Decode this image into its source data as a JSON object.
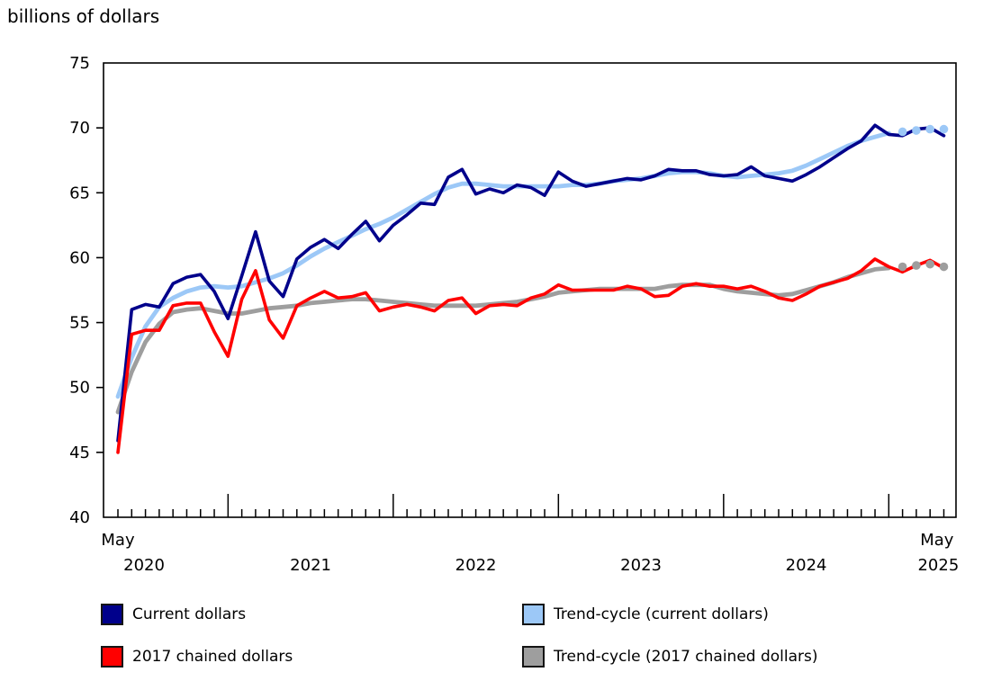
{
  "title": "billions of dollars",
  "chart_data": {
    "type": "line",
    "title": "billions of dollars",
    "xlabel": "",
    "ylabel": "billions of dollars",
    "frequency": "monthly",
    "x_start": "2020-05",
    "x_end": "2025-05",
    "ylim": [
      40,
      75
    ],
    "y_ticks": [
      75,
      70,
      65,
      60,
      55,
      50,
      45,
      40
    ],
    "grid": false,
    "legend_position": "bottom",
    "note": "last 4 points of trend-cycle series drawn as dots",
    "months": [
      "2020-05",
      "2020-06",
      "2020-07",
      "2020-08",
      "2020-09",
      "2020-10",
      "2020-11",
      "2020-12",
      "2021-01",
      "2021-02",
      "2021-03",
      "2021-04",
      "2021-05",
      "2021-06",
      "2021-07",
      "2021-08",
      "2021-09",
      "2021-10",
      "2021-11",
      "2021-12",
      "2022-01",
      "2022-02",
      "2022-03",
      "2022-04",
      "2022-05",
      "2022-06",
      "2022-07",
      "2022-08",
      "2022-09",
      "2022-10",
      "2022-11",
      "2022-12",
      "2023-01",
      "2023-02",
      "2023-03",
      "2023-04",
      "2023-05",
      "2023-06",
      "2023-07",
      "2023-08",
      "2023-09",
      "2023-10",
      "2023-11",
      "2023-12",
      "2024-01",
      "2024-02",
      "2024-03",
      "2024-04",
      "2024-05",
      "2024-06",
      "2024-07",
      "2024-08",
      "2024-09",
      "2024-10",
      "2024-11",
      "2024-12",
      "2025-01",
      "2025-02",
      "2025-03",
      "2025-04",
      "2025-05"
    ],
    "x_axis_labels": [
      {
        "text": "May",
        "month_index": 0,
        "row": 1
      },
      {
        "text": "2020",
        "month_index": 1.9,
        "row": 2
      },
      {
        "text": "2021",
        "month_index": 14,
        "row": 2
      },
      {
        "text": "2022",
        "month_index": 26,
        "row": 2
      },
      {
        "text": "2023",
        "month_index": 38,
        "row": 2
      },
      {
        "text": "2024",
        "month_index": 50,
        "row": 2
      },
      {
        "text": "May",
        "month_index": 59.5,
        "row": 1
      },
      {
        "text": "2025",
        "month_index": 59.6,
        "row": 2
      }
    ],
    "series": [
      {
        "name": "Current dollars",
        "color": "#00008B",
        "trend": false,
        "values": [
          45.9,
          56.0,
          56.4,
          56.2,
          58.0,
          58.5,
          58.7,
          57.4,
          55.3,
          58.6,
          62.0,
          58.2,
          57.0,
          59.9,
          60.8,
          61.4,
          60.7,
          61.8,
          62.8,
          61.3,
          62.5,
          63.3,
          64.2,
          64.1,
          66.2,
          66.8,
          64.9,
          65.3,
          65.0,
          65.6,
          65.4,
          64.8,
          66.6,
          65.9,
          65.5,
          65.7,
          65.9,
          66.1,
          66.0,
          66.3,
          66.8,
          66.7,
          66.7,
          66.4,
          66.3,
          66.4,
          67.0,
          66.3,
          66.1,
          65.9,
          66.4,
          67.0,
          67.7,
          68.4,
          69.0,
          70.2,
          69.5,
          69.4,
          69.9,
          70.0,
          69.4
        ]
      },
      {
        "name": "Trend-cycle (current dollars)",
        "color": "#9CC8F7",
        "trend": true,
        "dotted_tail": 4,
        "values": [
          49.3,
          52.3,
          54.7,
          56.2,
          56.9,
          57.4,
          57.7,
          57.8,
          57.7,
          57.8,
          58.1,
          58.4,
          58.8,
          59.4,
          60.1,
          60.7,
          61.2,
          61.7,
          62.2,
          62.6,
          63.1,
          63.7,
          64.3,
          64.9,
          65.4,
          65.7,
          65.7,
          65.6,
          65.5,
          65.5,
          65.5,
          65.5,
          65.5,
          65.6,
          65.6,
          65.7,
          65.9,
          66.0,
          66.1,
          66.3,
          66.5,
          66.6,
          66.6,
          66.5,
          66.3,
          66.2,
          66.3,
          66.4,
          66.5,
          66.7,
          67.1,
          67.6,
          68.1,
          68.6,
          69.0,
          69.3,
          69.6,
          69.7,
          69.8,
          69.9,
          69.9
        ]
      },
      {
        "name": "2017 chained dollars",
        "color": "#FF0000",
        "trend": false,
        "values": [
          45.0,
          54.1,
          54.4,
          54.4,
          56.3,
          56.5,
          56.5,
          54.3,
          52.4,
          56.8,
          59.0,
          55.2,
          53.8,
          56.3,
          56.9,
          57.4,
          56.9,
          57.0,
          57.3,
          55.9,
          56.2,
          56.4,
          56.2,
          55.9,
          56.7,
          56.9,
          55.7,
          56.3,
          56.4,
          56.3,
          56.9,
          57.2,
          57.9,
          57.5,
          57.5,
          57.5,
          57.5,
          57.8,
          57.6,
          57.0,
          57.1,
          57.8,
          58.0,
          57.8,
          57.8,
          57.6,
          57.8,
          57.4,
          56.9,
          56.7,
          57.2,
          57.8,
          58.1,
          58.4,
          59.0,
          59.9,
          59.3,
          58.9,
          59.4,
          59.8,
          59.2
        ]
      },
      {
        "name": "Trend-cycle (2017 chained dollars)",
        "color": "#9E9E9E",
        "trend": true,
        "dotted_tail": 4,
        "values": [
          48.1,
          51.2,
          53.5,
          54.9,
          55.8,
          56.0,
          56.1,
          55.9,
          55.7,
          55.7,
          55.9,
          56.1,
          56.2,
          56.3,
          56.5,
          56.6,
          56.7,
          56.8,
          56.8,
          56.7,
          56.6,
          56.5,
          56.4,
          56.3,
          56.3,
          56.3,
          56.3,
          56.4,
          56.5,
          56.6,
          56.8,
          57.0,
          57.3,
          57.4,
          57.5,
          57.6,
          57.6,
          57.6,
          57.6,
          57.6,
          57.8,
          57.9,
          57.9,
          57.9,
          57.6,
          57.4,
          57.3,
          57.2,
          57.1,
          57.2,
          57.5,
          57.8,
          58.1,
          58.5,
          58.8,
          59.1,
          59.2,
          59.3,
          59.4,
          59.5,
          59.3
        ]
      }
    ]
  },
  "legend": {
    "items": [
      {
        "label": "Current dollars",
        "color": "#00008B"
      },
      {
        "label": "2017 chained dollars",
        "color": "#FF0000"
      },
      {
        "label": "Trend-cycle (current dollars)",
        "color": "#9CC8F7"
      },
      {
        "label": "Trend-cycle (2017 chained dollars)",
        "color": "#9E9E9E"
      }
    ]
  }
}
